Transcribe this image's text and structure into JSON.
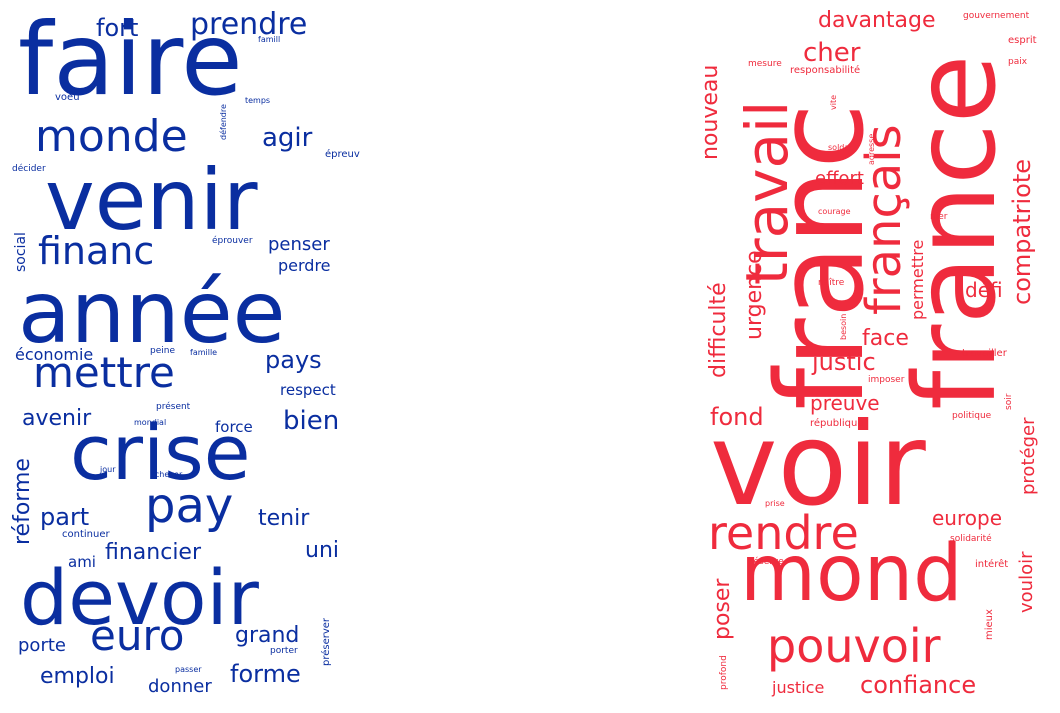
{
  "clouds": [
    {
      "id": "left",
      "color": "#0a2ea0",
      "words": [
        "faire",
        "venir",
        "année",
        "crise",
        "devoir",
        "mettre",
        "monde",
        "pay",
        "euro",
        "financ",
        "prendre",
        "fort",
        "agir",
        "pays",
        "avenir",
        "bien",
        "tenir",
        "part",
        "financier",
        "uni",
        "forme",
        "grand",
        "emploi",
        "donner",
        "porte",
        "penser",
        "perdre",
        "économie",
        "respect",
        "réforme",
        "social",
        "force",
        "ami",
        "continuer",
        "famill",
        "voeu",
        "défendre",
        "temps",
        "épreuve",
        "décider",
        "éprouver",
        "peine",
        "famille",
        "présent",
        "mondial",
        "jour",
        "achever",
        "passer",
        "porter",
        "préserver"
      ]
    },
    {
      "id": "right",
      "color": "#ef2b3d",
      "words": [
        "voir",
        "franc",
        "france",
        "mond",
        "travail",
        "français",
        "rendre",
        "pouvoir",
        "davantage",
        "cher",
        "nouveau",
        "difficulté",
        "urgence",
        "compatriote",
        "effort",
        "permettre",
        "défi",
        "face",
        "justic",
        "preuve",
        "fond",
        "protéger",
        "europe",
        "poser",
        "vouloir",
        "confiance",
        "justice",
        "gouvernement",
        "esprit",
        "paix",
        "mesure",
        "responsabilité",
        "vite",
        "adresse",
        "soldat",
        "courage",
        "nier",
        "naître",
        "besoin",
        "travailler",
        "imposer",
        "soir",
        "république",
        "politique",
        "prise",
        "solidarité",
        "réserve",
        "intérêt",
        "mieux",
        "profond"
      ]
    }
  ]
}
